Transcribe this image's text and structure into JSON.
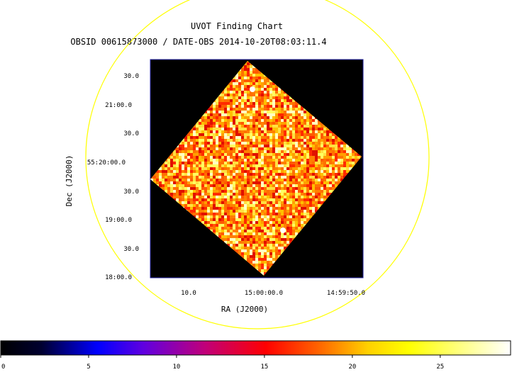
{
  "chart_data": {
    "type": "heatmap",
    "title": "UVOT Finding Chart",
    "subtitle": "OBSID 00615873000 / DATE-OBS 2014-10-20T08:03:11.4",
    "xlabel": "RA (J2000)",
    "ylabel": "Dec (J2000)",
    "x_ticks": [
      "10.0",
      "15:00:00.0",
      "14:59:50.0"
    ],
    "y_ticks": [
      "30.0",
      "21:00.0",
      "30.0",
      "55:20:00.0",
      "30.0",
      "19:00.0",
      "30.0",
      "18:00.0"
    ],
    "colorbar": {
      "range": [
        0,
        29
      ],
      "ticks": [
        "0",
        "5",
        "10",
        "15",
        "20",
        "25"
      ],
      "tick_values": [
        0,
        5,
        10,
        15,
        20,
        25
      ],
      "colormap": "heat"
    },
    "grid": false
  },
  "colors": {
    "circle": "#ffff00",
    "frame": "#2020a0",
    "sky_background": "#000000"
  }
}
